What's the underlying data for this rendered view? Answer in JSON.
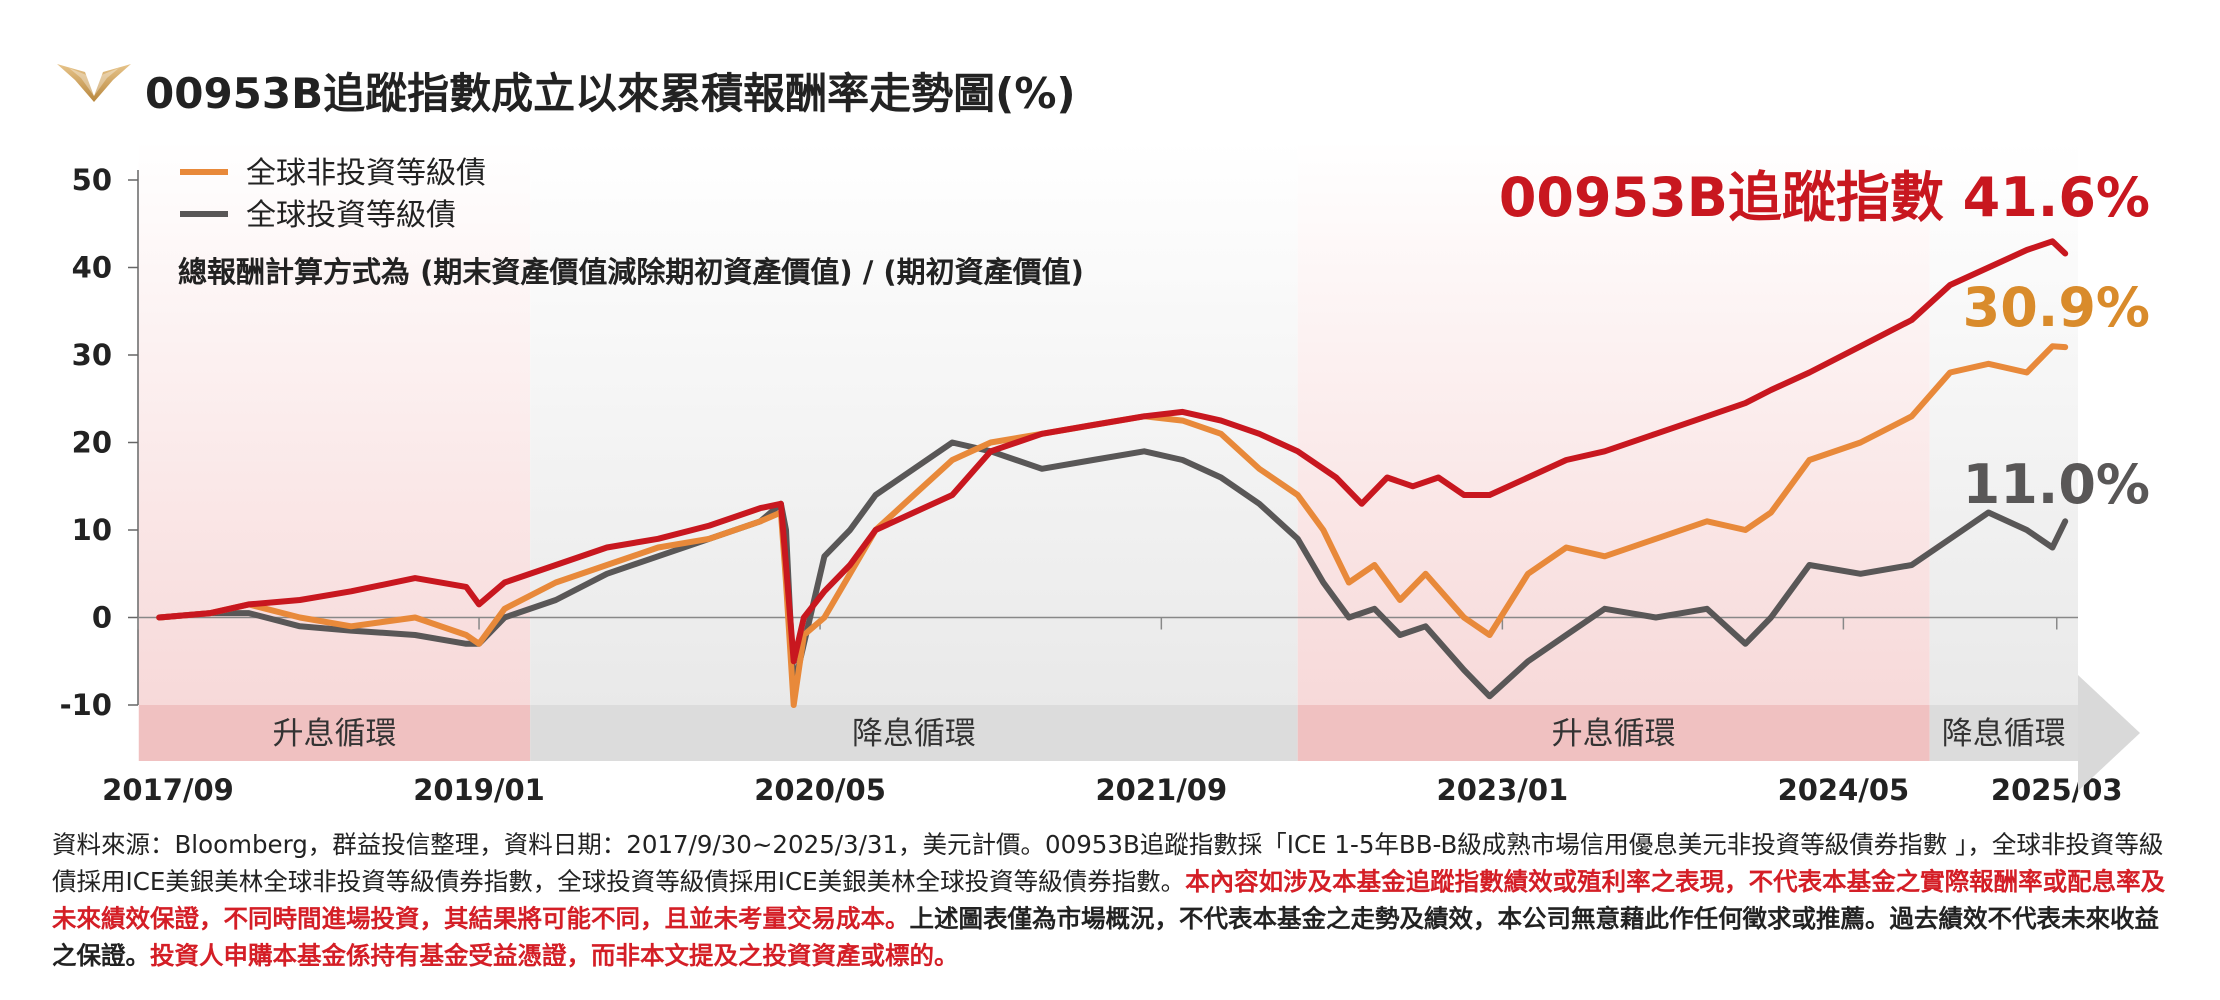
{
  "title": "00953B追蹤指數成立以來累積報酬率走勢圖(%)",
  "legend": [
    {
      "label": "全球非投資等級債",
      "color": "#e8893a"
    },
    {
      "label": "全球投資等級債",
      "color": "#595757"
    }
  ],
  "formula_note": "總報酬計算方式為 (期末資產價值減除期初資產價值) / (期初資產價值)",
  "end_labels": [
    {
      "text": "00953B追蹤指數 41.6%",
      "color": "#c8171f"
    },
    {
      "text": "30.9%",
      "color": "#d98b2b"
    },
    {
      "text": "11.0%",
      "color": "#595757"
    }
  ],
  "cycles": [
    {
      "label": "升息循環",
      "start": 2017.67,
      "end": 2019.2,
      "color": "#f0c1c1"
    },
    {
      "label": "降息循環",
      "start": 2019.2,
      "end": 2022.2,
      "color": "#dcdcdc"
    },
    {
      "label": "升息循環",
      "start": 2022.2,
      "end": 2024.67,
      "color": "#f0c1c1"
    },
    {
      "label": "降息循環",
      "start": 2024.67,
      "end": 2025.25,
      "color": "#dcdcdc"
    }
  ],
  "chart_data": {
    "type": "line",
    "title": "00953B追蹤指數成立以來累積報酬率走勢圖(%)",
    "ylim": [
      -10,
      50
    ],
    "yticks": [
      50,
      40,
      30,
      20,
      10,
      0,
      -10
    ],
    "xlim": [
      2017.667,
      2025.25
    ],
    "xticks": [
      {
        "label": "2017/09",
        "x": 2017.667
      },
      {
        "label": "2019/01",
        "x": 2019.0
      },
      {
        "label": "2020/05",
        "x": 2020.333
      },
      {
        "label": "2021/09",
        "x": 2021.667
      },
      {
        "label": "2023/01",
        "x": 2023.0
      },
      {
        "label": "2024/05",
        "x": 2024.333
      },
      {
        "label": "2025/03",
        "x": 2025.167
      }
    ],
    "grid": false,
    "legend_position": "top-left",
    "series": [
      {
        "name": "00953B追蹤指數",
        "color": "#c8171f",
        "points": [
          [
            2017.75,
            0
          ],
          [
            2017.95,
            0.5
          ],
          [
            2018.1,
            1.5
          ],
          [
            2018.3,
            2
          ],
          [
            2018.5,
            3
          ],
          [
            2018.75,
            4.5
          ],
          [
            2018.95,
            3.5
          ],
          [
            2019.0,
            1.5
          ],
          [
            2019.1,
            4
          ],
          [
            2019.3,
            6
          ],
          [
            2019.5,
            8
          ],
          [
            2019.7,
            9
          ],
          [
            2019.9,
            10.5
          ],
          [
            2020.1,
            12.5
          ],
          [
            2020.18,
            13
          ],
          [
            2020.2,
            6
          ],
          [
            2020.23,
            -5
          ],
          [
            2020.27,
            0
          ],
          [
            2020.35,
            3
          ],
          [
            2020.45,
            6
          ],
          [
            2020.55,
            10
          ],
          [
            2020.7,
            12
          ],
          [
            2020.85,
            14
          ],
          [
            2021.0,
            19
          ],
          [
            2021.2,
            21
          ],
          [
            2021.4,
            22
          ],
          [
            2021.6,
            23
          ],
          [
            2021.75,
            23.5
          ],
          [
            2021.9,
            22.5
          ],
          [
            2022.05,
            21
          ],
          [
            2022.2,
            19
          ],
          [
            2022.35,
            16
          ],
          [
            2022.45,
            13
          ],
          [
            2022.55,
            16
          ],
          [
            2022.65,
            15
          ],
          [
            2022.75,
            16
          ],
          [
            2022.85,
            14
          ],
          [
            2022.95,
            14
          ],
          [
            2023.1,
            16
          ],
          [
            2023.25,
            18
          ],
          [
            2023.4,
            19
          ],
          [
            2023.6,
            21
          ],
          [
            2023.8,
            23
          ],
          [
            2023.95,
            24.5
          ],
          [
            2024.05,
            26
          ],
          [
            2024.2,
            28
          ],
          [
            2024.4,
            31
          ],
          [
            2024.6,
            34
          ],
          [
            2024.75,
            38
          ],
          [
            2024.9,
            40
          ],
          [
            2025.05,
            42
          ],
          [
            2025.15,
            43
          ],
          [
            2025.2,
            41.6
          ]
        ]
      },
      {
        "name": "全球非投資等級債",
        "color": "#e8893a",
        "points": [
          [
            2017.75,
            0
          ],
          [
            2017.95,
            0.5
          ],
          [
            2018.1,
            1.5
          ],
          [
            2018.3,
            0
          ],
          [
            2018.5,
            -1
          ],
          [
            2018.75,
            0
          ],
          [
            2018.95,
            -2
          ],
          [
            2019.0,
            -3
          ],
          [
            2019.1,
            1
          ],
          [
            2019.3,
            4
          ],
          [
            2019.5,
            6
          ],
          [
            2019.7,
            8
          ],
          [
            2019.9,
            9
          ],
          [
            2020.1,
            11
          ],
          [
            2020.18,
            12
          ],
          [
            2020.2,
            4
          ],
          [
            2020.23,
            -10
          ],
          [
            2020.27,
            -2
          ],
          [
            2020.35,
            0
          ],
          [
            2020.45,
            5
          ],
          [
            2020.55,
            10
          ],
          [
            2020.7,
            14
          ],
          [
            2020.85,
            18
          ],
          [
            2021.0,
            20
          ],
          [
            2021.2,
            21
          ],
          [
            2021.4,
            22
          ],
          [
            2021.6,
            23
          ],
          [
            2021.75,
            22.5
          ],
          [
            2021.9,
            21
          ],
          [
            2022.05,
            17
          ],
          [
            2022.2,
            14
          ],
          [
            2022.3,
            10
          ],
          [
            2022.4,
            4
          ],
          [
            2022.5,
            6
          ],
          [
            2022.6,
            2
          ],
          [
            2022.7,
            5
          ],
          [
            2022.85,
            0
          ],
          [
            2022.95,
            -2
          ],
          [
            2023.1,
            5
          ],
          [
            2023.25,
            8
          ],
          [
            2023.4,
            7
          ],
          [
            2023.6,
            9
          ],
          [
            2023.8,
            11
          ],
          [
            2023.95,
            10
          ],
          [
            2024.05,
            12
          ],
          [
            2024.2,
            18
          ],
          [
            2024.4,
            20
          ],
          [
            2024.6,
            23
          ],
          [
            2024.75,
            28
          ],
          [
            2024.9,
            29
          ],
          [
            2025.05,
            28
          ],
          [
            2025.15,
            31
          ],
          [
            2025.2,
            30.9
          ]
        ]
      },
      {
        "name": "全球投資等級債",
        "color": "#595757",
        "points": [
          [
            2017.75,
            0
          ],
          [
            2017.95,
            0.5
          ],
          [
            2018.1,
            0.5
          ],
          [
            2018.3,
            -1
          ],
          [
            2018.5,
            -1.5
          ],
          [
            2018.75,
            -2
          ],
          [
            2018.95,
            -3
          ],
          [
            2019.0,
            -3
          ],
          [
            2019.1,
            0
          ],
          [
            2019.3,
            2
          ],
          [
            2019.5,
            5
          ],
          [
            2019.7,
            7
          ],
          [
            2019.9,
            9
          ],
          [
            2020.1,
            11
          ],
          [
            2020.18,
            13
          ],
          [
            2020.2,
            10
          ],
          [
            2020.23,
            -8
          ],
          [
            2020.27,
            -3
          ],
          [
            2020.35,
            7
          ],
          [
            2020.45,
            10
          ],
          [
            2020.55,
            14
          ],
          [
            2020.7,
            17
          ],
          [
            2020.85,
            20
          ],
          [
            2021.0,
            19
          ],
          [
            2021.2,
            17
          ],
          [
            2021.4,
            18
          ],
          [
            2021.6,
            19
          ],
          [
            2021.75,
            18
          ],
          [
            2021.9,
            16
          ],
          [
            2022.05,
            13
          ],
          [
            2022.2,
            9
          ],
          [
            2022.3,
            4
          ],
          [
            2022.4,
            0
          ],
          [
            2022.5,
            1
          ],
          [
            2022.6,
            -2
          ],
          [
            2022.7,
            -1
          ],
          [
            2022.85,
            -6
          ],
          [
            2022.95,
            -9
          ],
          [
            2023.1,
            -5
          ],
          [
            2023.25,
            -2
          ],
          [
            2023.4,
            1
          ],
          [
            2023.6,
            0
          ],
          [
            2023.8,
            1
          ],
          [
            2023.95,
            -3
          ],
          [
            2024.05,
            0
          ],
          [
            2024.2,
            6
          ],
          [
            2024.4,
            5
          ],
          [
            2024.6,
            6
          ],
          [
            2024.75,
            9
          ],
          [
            2024.9,
            12
          ],
          [
            2025.05,
            10
          ],
          [
            2025.15,
            8
          ],
          [
            2025.2,
            11.0
          ]
        ]
      }
    ]
  },
  "footnote": {
    "p1": "資料來源：Bloomberg，群益投信整理，資料日期：2017/9/30~2025/3/31，美元計價。00953B追蹤指數採「ICE 1-5年BB-B級成熟市場信用優息美元非投資等級債券指數 」，全球非投資等級債採用ICE美銀美林全球非投資等級債券指數，全球投資等級債採用ICE美銀美林全球投資等級債券指數。",
    "red1": "本內容如涉及本基金追蹤指數績效或殖利率之表現，不代表本基金之實際報酬率或配息率及未來績效保證，不同時間進場投資，其結果將可能不同，且並未考量交易成本。",
    "p2": "上述圖表僅為市場概況，不代表本基金之走勢及績效，本公司無意藉此作任何徵求或推薦。過去績效不代表未來收益之保證。",
    "red2": "投資人申購本基金係持有基金受益憑證，而非本文提及之投資資產或標的。"
  }
}
